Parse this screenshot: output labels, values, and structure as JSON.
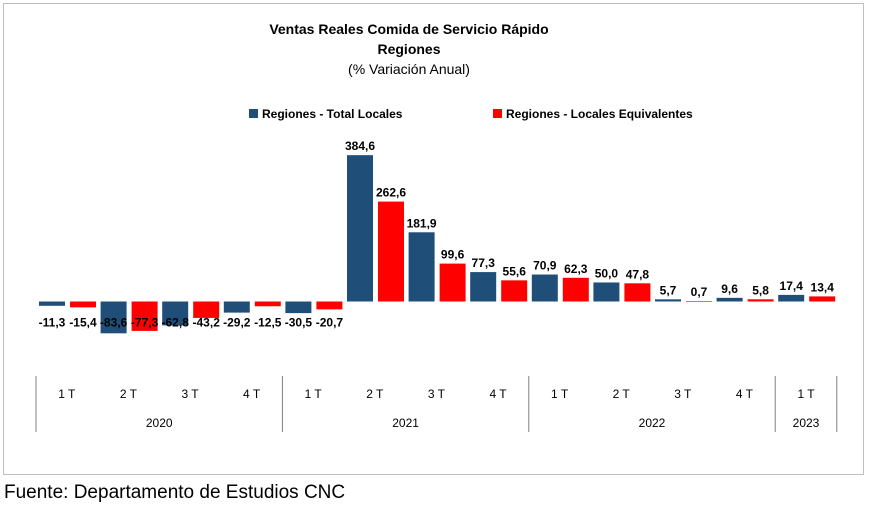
{
  "chart_data": {
    "type": "bar",
    "title": "Ventas Reales Comida de Servicio Rápido",
    "subtitle": "Regiones",
    "unit_note": "(% Variación Anual)",
    "categories": [
      "1 T",
      "2 T",
      "3 T",
      "4 T",
      "1 T",
      "2 T",
      "3 T",
      "4 T",
      "1 T",
      "2 T",
      "3 T",
      "4 T",
      "1 T"
    ],
    "years": [
      {
        "label": "2020",
        "count": 4
      },
      {
        "label": "2021",
        "count": 4
      },
      {
        "label": "2022",
        "count": 4
      },
      {
        "label": "2023",
        "count": 1
      }
    ],
    "series": [
      {
        "name": "Regiones - Total Locales",
        "color": "#1f4e79",
        "values": [
          -11.3,
          -83.6,
          -62.8,
          -29.2,
          -30.5,
          384.6,
          181.9,
          77.3,
          70.9,
          50.0,
          5.7,
          9.6,
          17.4
        ],
        "labels": [
          "-11,3",
          "-83,6",
          "-62,8",
          "-29,2",
          "-30,5",
          "384,6",
          "181,9",
          "77,3",
          "70,9",
          "50,0",
          "5,7",
          "9,6",
          "17,4"
        ]
      },
      {
        "name": "Regiones - Locales Equivalentes",
        "color": "#ff0000",
        "values": [
          -15.4,
          -77.3,
          -43.2,
          -12.5,
          -20.7,
          262.6,
          99.6,
          55.6,
          62.3,
          47.8,
          0.7,
          5.8,
          13.4
        ],
        "labels": [
          "-15,4",
          "-77,3",
          "-43,2",
          "-12,5",
          "-20,7",
          "262,6",
          "99,6",
          "55,6",
          "62,3",
          "47,8",
          "0,7",
          "5,8",
          "13,4"
        ]
      }
    ],
    "legend_position": "top",
    "grid": false
  },
  "source": "Fuente: Departamento de Estudios CNC"
}
